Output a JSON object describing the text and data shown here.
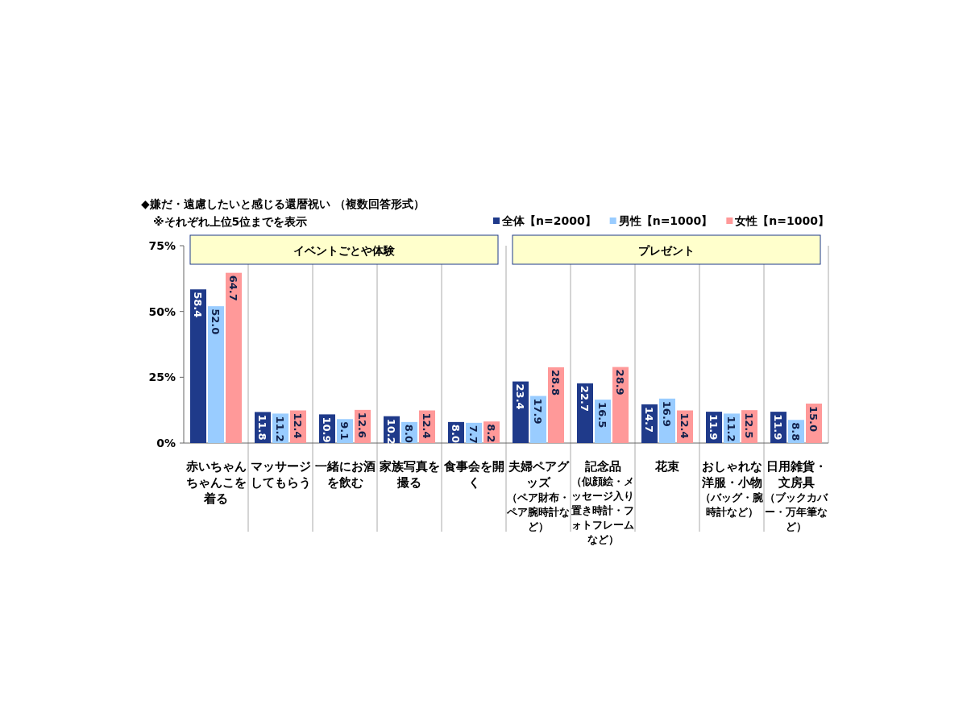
{
  "chart_data": {
    "type": "bar",
    "title": "◆嫌だ・遠慮したいと感じる還暦祝い （複数回答形式）",
    "subtitle": "※それぞれ上位5位までを表示",
    "categories": [
      "赤いちゃんちゃんこを着る",
      "マッサージしてもらう",
      "一緒にお酒を飲む",
      "家族写真を撮る",
      "食事会を開く",
      "夫婦ペアグッズ$_{（ペア財布・ペア腕時計など）}$",
      "記念品$_{（似顔絵・メッセージ入り置き時計・フォトフレームなど）}$",
      "花束",
      "おしゃれな洋服・小物$_{（バッグ・腕時計など）}$",
      "日用雑貨・文房具$_{（ブックカバー・万年筆など）}$"
    ],
    "series": [
      {
        "name": "全体【n=2000】",
        "color": "#1f3a8a",
        "values": [
          58.4,
          11.8,
          10.9,
          10.2,
          8.0,
          23.4,
          22.7,
          14.7,
          11.9,
          11.9
        ],
        "value_labels": [
          "58.4",
          "11.8",
          "10.9",
          "10.2",
          "8.0",
          "23.4",
          "22.7",
          "14.7",
          "11.9",
          "11.9"
        ]
      },
      {
        "name": "男性【n=1000】",
        "color": "#99ccff",
        "values": [
          52.0,
          11.2,
          9.1,
          8.0,
          7.7,
          17.9,
          16.5,
          16.9,
          11.2,
          8.8
        ],
        "value_labels": [
          "52.0",
          "11.2",
          "9.1",
          "8.0",
          "7.7",
          "17.9",
          "16.5",
          "16.9",
          "11.2",
          "8.8"
        ]
      },
      {
        "name": "女性【n=1000】",
        "color": "#ff9999",
        "values": [
          64.7,
          12.4,
          12.6,
          12.4,
          8.2,
          28.8,
          28.9,
          12.4,
          12.5,
          15.0
        ],
        "value_labels": [
          "64.7",
          "12.4",
          "12.6",
          "12.4",
          "8.2",
          "28.8",
          "28.9",
          "12.4",
          "12.5",
          "15.0"
        ]
      }
    ],
    "ylim": [
      0,
      75
    ],
    "yticks": [
      {
        "value": 0,
        "label": "0%"
      },
      {
        "value": 25,
        "label": "25%"
      },
      {
        "value": 50,
        "label": "50%"
      },
      {
        "value": 75,
        "label": "75%"
      }
    ],
    "annotations": [
      "イベントごとや体験",
      "プレゼント"
    ],
    "grid": "x",
    "legend": "top right"
  }
}
